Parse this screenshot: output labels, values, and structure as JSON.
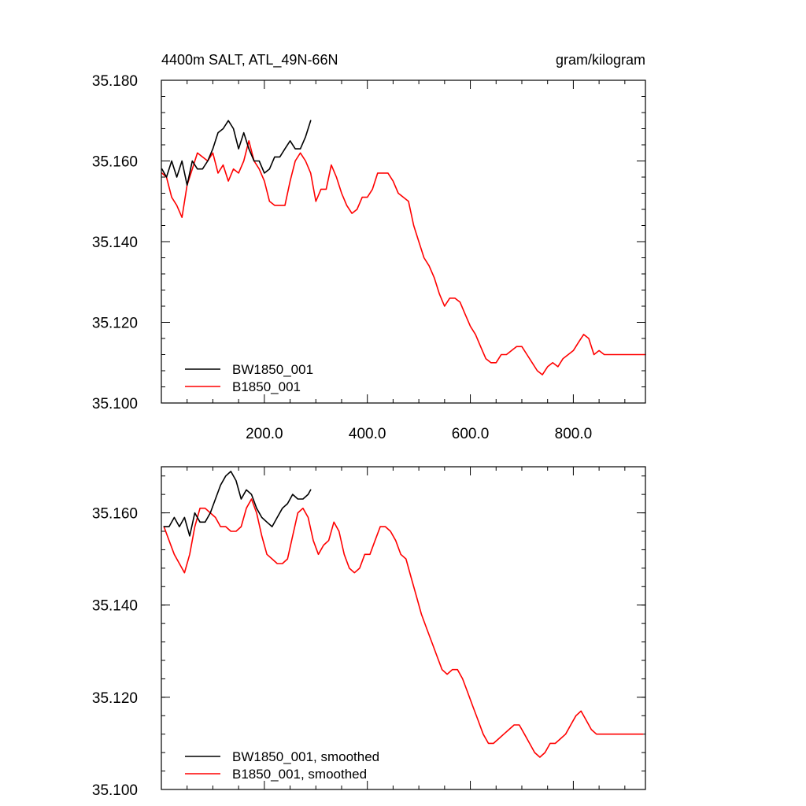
{
  "chart_data": [
    {
      "type": "line",
      "title_left": "4400m SALT, ATL_49N-66N",
      "title_right": "gram/kilogram",
      "xlim": [
        0,
        940
      ],
      "ylim": [
        35.1,
        35.18
      ],
      "x_ticks": [
        200,
        400,
        600,
        800
      ],
      "x_tick_labels": [
        "200.0",
        "400.0",
        "600.0",
        "800.0"
      ],
      "y_ticks": [
        35.1,
        35.12,
        35.14,
        35.16,
        35.18
      ],
      "y_tick_labels": [
        "35.100",
        "35.120",
        "35.140",
        "35.160",
        "35.180"
      ],
      "legend": [
        "BW1850_001",
        "B1850_001"
      ],
      "legend_position": "bottom-left",
      "series": [
        {
          "name": "BW1850_001",
          "color": "#000000",
          "x": [
            1,
            10,
            20,
            30,
            40,
            50,
            60,
            70,
            80,
            90,
            100,
            110,
            120,
            130,
            140,
            150,
            160,
            170,
            180,
            190,
            200,
            210,
            220,
            230,
            240,
            250,
            260,
            270,
            280,
            290
          ],
          "y": [
            35.158,
            35.156,
            35.16,
            35.156,
            35.16,
            35.154,
            35.16,
            35.158,
            35.158,
            35.16,
            35.163,
            35.167,
            35.168,
            35.17,
            35.168,
            35.163,
            35.167,
            35.163,
            35.16,
            35.16,
            35.157,
            35.158,
            35.161,
            35.161,
            35.163,
            35.165,
            35.163,
            35.163,
            35.166,
            35.17
          ]
        },
        {
          "name": "B1850_001",
          "color": "#ff0000",
          "x": [
            1,
            10,
            20,
            30,
            40,
            50,
            60,
            70,
            80,
            90,
            100,
            110,
            120,
            130,
            140,
            150,
            160,
            170,
            180,
            190,
            200,
            210,
            220,
            230,
            240,
            250,
            260,
            270,
            280,
            290,
            300,
            310,
            320,
            330,
            340,
            350,
            360,
            370,
            380,
            390,
            400,
            410,
            420,
            430,
            440,
            450,
            460,
            470,
            480,
            490,
            500,
            510,
            520,
            530,
            540,
            550,
            560,
            570,
            580,
            590,
            600,
            610,
            620,
            630,
            640,
            650,
            660,
            670,
            680,
            690,
            700,
            710,
            720,
            730,
            740,
            750,
            760,
            770,
            780,
            790,
            800,
            810,
            820,
            830,
            840,
            850,
            860,
            870,
            880,
            890,
            900,
            910,
            920,
            930,
            940
          ],
          "y": [
            35.157,
            35.156,
            35.151,
            35.149,
            35.146,
            35.154,
            35.158,
            35.162,
            35.161,
            35.16,
            35.162,
            35.157,
            35.159,
            35.155,
            35.158,
            35.157,
            35.16,
            35.165,
            35.16,
            35.158,
            35.155,
            35.15,
            35.149,
            35.149,
            35.149,
            35.155,
            35.16,
            35.162,
            35.16,
            35.157,
            35.15,
            35.153,
            35.153,
            35.159,
            35.156,
            35.152,
            35.149,
            35.147,
            35.148,
            35.151,
            35.151,
            35.153,
            35.157,
            35.157,
            35.157,
            35.155,
            35.152,
            35.151,
            35.15,
            35.144,
            35.14,
            35.136,
            35.134,
            35.131,
            35.127,
            35.124,
            35.126,
            35.126,
            35.125,
            35.122,
            35.119,
            35.117,
            35.114,
            35.111,
            35.11,
            35.11,
            35.112,
            35.112,
            35.113,
            35.114,
            35.114,
            35.112,
            35.11,
            35.108,
            35.107,
            35.109,
            35.11,
            35.109,
            35.111,
            35.112,
            35.113,
            35.115,
            35.117,
            35.116,
            35.112,
            35.113,
            35.112,
            35.112,
            35.112,
            35.112,
            35.112,
            35.112,
            35.112,
            35.112,
            35.112
          ]
        }
      ]
    },
    {
      "type": "line",
      "xlim": [
        0,
        940
      ],
      "ylim": [
        35.1,
        35.17
      ],
      "y_ticks": [
        35.1,
        35.12,
        35.14,
        35.16
      ],
      "y_tick_labels": [
        "35.100",
        "35.120",
        "35.140",
        "35.160"
      ],
      "legend": [
        "BW1850_001, smoothed",
        "B1850_001, smoothed"
      ],
      "legend_position": "bottom-left",
      "series": [
        {
          "name": "BW1850_001, smoothed",
          "color": "#000000",
          "x": [
            5,
            15,
            25,
            35,
            45,
            55,
            65,
            75,
            85,
            95,
            105,
            115,
            125,
            135,
            145,
            155,
            165,
            175,
            185,
            195,
            205,
            215,
            225,
            235,
            245,
            255,
            265,
            275,
            285,
            290
          ],
          "y": [
            35.157,
            35.157,
            35.159,
            35.157,
            35.159,
            35.155,
            35.16,
            35.158,
            35.158,
            35.16,
            35.163,
            35.166,
            35.168,
            35.169,
            35.167,
            35.163,
            35.165,
            35.164,
            35.161,
            35.159,
            35.158,
            35.157,
            35.159,
            35.161,
            35.162,
            35.164,
            35.163,
            35.163,
            35.164,
            35.165
          ]
        },
        {
          "name": "B1850_001, smoothed",
          "color": "#ff0000",
          "x": [
            5,
            15,
            25,
            35,
            45,
            55,
            65,
            75,
            85,
            95,
            105,
            115,
            125,
            135,
            145,
            155,
            165,
            175,
            185,
            195,
            205,
            215,
            225,
            235,
            245,
            255,
            265,
            275,
            285,
            295,
            305,
            315,
            325,
            335,
            345,
            355,
            365,
            375,
            385,
            395,
            405,
            415,
            425,
            435,
            445,
            455,
            465,
            475,
            485,
            495,
            505,
            515,
            525,
            535,
            545,
            555,
            565,
            575,
            585,
            595,
            605,
            615,
            625,
            635,
            645,
            655,
            665,
            675,
            685,
            695,
            705,
            715,
            725,
            735,
            745,
            755,
            765,
            775,
            785,
            795,
            805,
            815,
            825,
            835,
            845,
            855,
            865,
            875,
            885,
            895,
            905,
            915,
            925,
            935
          ],
          "y": [
            35.157,
            35.154,
            35.151,
            35.149,
            35.147,
            35.151,
            35.157,
            35.161,
            35.161,
            35.16,
            35.159,
            35.157,
            35.157,
            35.156,
            35.156,
            35.157,
            35.161,
            35.163,
            35.16,
            35.155,
            35.151,
            35.15,
            35.149,
            35.149,
            35.15,
            35.155,
            35.16,
            35.161,
            35.159,
            35.154,
            35.151,
            35.153,
            35.154,
            35.158,
            35.156,
            35.151,
            35.148,
            35.147,
            35.148,
            35.151,
            35.151,
            35.154,
            35.157,
            35.157,
            35.156,
            35.154,
            35.151,
            35.15,
            35.146,
            35.142,
            35.138,
            35.135,
            35.132,
            35.129,
            35.126,
            35.125,
            35.126,
            35.126,
            35.124,
            35.121,
            35.118,
            35.115,
            35.112,
            35.11,
            35.11,
            35.111,
            35.112,
            35.113,
            35.114,
            35.114,
            35.112,
            35.11,
            35.108,
            35.107,
            35.108,
            35.11,
            35.11,
            35.111,
            35.112,
            35.114,
            35.116,
            35.117,
            35.115,
            35.113,
            35.112,
            35.112,
            35.112,
            35.112,
            35.112,
            35.112,
            35.112,
            35.112,
            35.112,
            35.112
          ]
        }
      ]
    }
  ]
}
